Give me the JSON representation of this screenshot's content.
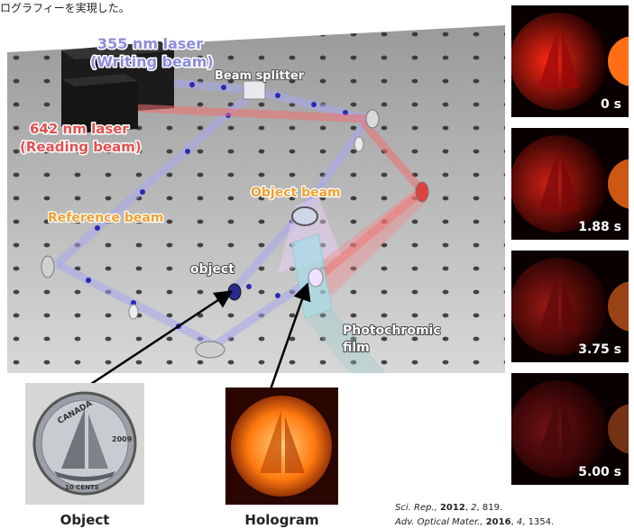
{
  "caption_top": "ログラフィーを実現した。",
  "setup": {
    "writing_laser": [
      "355 nm laser",
      "(Writing beam)"
    ],
    "reading_laser": [
      "642 nm laser",
      "(Reading beam)"
    ],
    "beam_splitter": "Beam splitter",
    "object_beam": "Object beam",
    "reference_beam": "Reference beam",
    "object_label": "object",
    "film_label": [
      "Photochromic",
      "film"
    ]
  },
  "photos": {
    "object_caption": "Object",
    "hologram_caption": "Hologram",
    "coin_text_top": "CANADA",
    "coin_year": "2009",
    "coin_value": "10 CENTS"
  },
  "frames": [
    {
      "time": "0 s",
      "brightness": 1.0
    },
    {
      "time": "1.88 s",
      "brightness": 0.8
    },
    {
      "time": "3.75 s",
      "brightness": 0.6
    },
    {
      "time": "5.00 s",
      "brightness": 0.45
    }
  ],
  "references": {
    "line1_journal": "Sci. Rep., ",
    "line1_year": "2012",
    "line1_rest_a": ", ",
    "line1_vol": "2",
    "line1_rest_b": ", 819.",
    "line2_journal": "Adv. Optical Mater., ",
    "line2_year": "2016",
    "line2_rest_a": ", ",
    "line2_vol": "4",
    "line2_rest_b": ", 1354."
  },
  "colors": {
    "writing": "#8c8cdc",
    "reading": "#e0504f",
    "object_beam": "#f0a030",
    "white": "#ffffff"
  }
}
